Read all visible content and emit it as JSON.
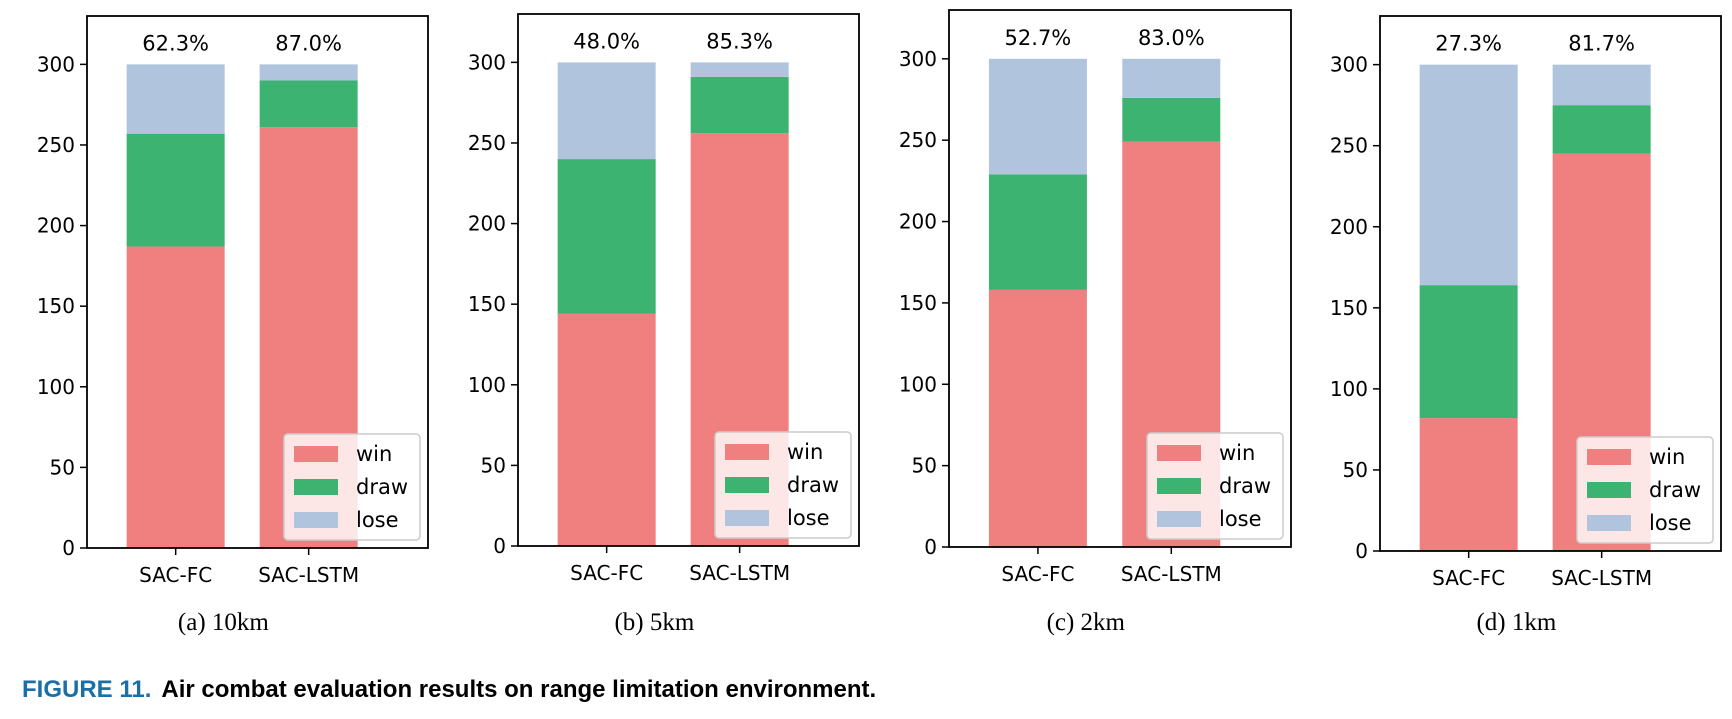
{
  "colors": {
    "win": "#f08080",
    "draw": "#3cb371",
    "lose": "#b0c4de",
    "caption_accent": "#1a6fa8"
  },
  "chart_data": [
    {
      "type": "bar",
      "stacked": true,
      "subcaption": "(a)  10km",
      "categories": [
        "SAC-FC",
        "SAC-LSTM"
      ],
      "series": [
        {
          "name": "win",
          "values": [
            187,
            261
          ]
        },
        {
          "name": "draw",
          "values": [
            70,
            29
          ]
        },
        {
          "name": "lose",
          "values": [
            43,
            10
          ]
        }
      ],
      "bar_labels": [
        "62.3%",
        "87.0%"
      ],
      "ylim": [
        0,
        330
      ],
      "yticks": [
        0,
        50,
        100,
        150,
        200,
        250,
        300
      ],
      "legend": "lower-right",
      "grid": false
    },
    {
      "type": "bar",
      "stacked": true,
      "subcaption": "(b)  5km",
      "categories": [
        "SAC-FC",
        "SAC-LSTM"
      ],
      "series": [
        {
          "name": "win",
          "values": [
            144,
            256
          ]
        },
        {
          "name": "draw",
          "values": [
            96,
            35
          ]
        },
        {
          "name": "lose",
          "values": [
            60,
            9
          ]
        }
      ],
      "bar_labels": [
        "48.0%",
        "85.3%"
      ],
      "ylim": [
        0,
        330
      ],
      "yticks": [
        0,
        50,
        100,
        150,
        200,
        250,
        300
      ],
      "legend": "lower-right",
      "grid": false
    },
    {
      "type": "bar",
      "stacked": true,
      "subcaption": "(c)  2km",
      "categories": [
        "SAC-FC",
        "SAC-LSTM"
      ],
      "series": [
        {
          "name": "win",
          "values": [
            158,
            249
          ]
        },
        {
          "name": "draw",
          "values": [
            71,
            27
          ]
        },
        {
          "name": "lose",
          "values": [
            71,
            24
          ]
        }
      ],
      "bar_labels": [
        "52.7%",
        "83.0%"
      ],
      "ylim": [
        0,
        330
      ],
      "yticks": [
        0,
        50,
        100,
        150,
        200,
        250,
        300
      ],
      "legend": "lower-right",
      "grid": false
    },
    {
      "type": "bar",
      "stacked": true,
      "subcaption": "(d)  1km",
      "categories": [
        "SAC-FC",
        "SAC-LSTM"
      ],
      "series": [
        {
          "name": "win",
          "values": [
            82,
            245
          ]
        },
        {
          "name": "draw",
          "values": [
            82,
            30
          ]
        },
        {
          "name": "lose",
          "values": [
            136,
            25
          ]
        }
      ],
      "bar_labels": [
        "27.3%",
        "81.7%"
      ],
      "ylim": [
        0,
        330
      ],
      "yticks": [
        0,
        50,
        100,
        150,
        200,
        250,
        300
      ],
      "legend": "lower-right",
      "grid": false
    }
  ],
  "caption": {
    "number": "FIGURE 11.",
    "text": "Air combat evaluation results on range limitation environment."
  }
}
